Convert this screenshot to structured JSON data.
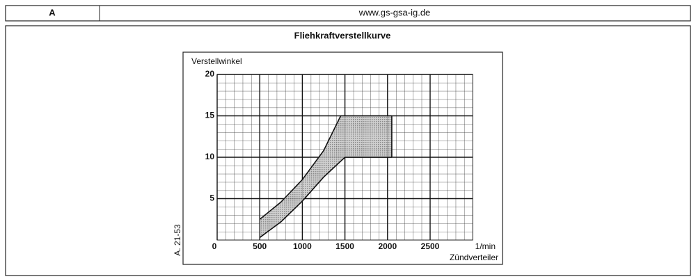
{
  "header": {
    "cell": "A",
    "url": "www.gs-gsa-ig.de"
  },
  "note": "A. 21-53",
  "chart_data": {
    "type": "area",
    "title": "Fliehkraftverstellkurve",
    "y_label": "Verstellwinkel",
    "x_label": "1/min",
    "x_label_2": "Zündverteiler",
    "xlim": [
      0,
      3000
    ],
    "ylim": [
      0,
      20
    ],
    "xticks": [
      0,
      500,
      1000,
      1500,
      2000,
      2500
    ],
    "yticks": [
      5,
      10,
      15,
      20
    ],
    "grid": true,
    "color": "#9a9a9a",
    "series": [
      {
        "x": [
          500,
          750,
          1000,
          1250,
          1450,
          2050
        ],
        "values": [
          2.5,
          4.6,
          7.3,
          10.8,
          15,
          15
        ]
      },
      {
        "x": [
          500,
          750,
          1000,
          1250,
          1500,
          2050
        ],
        "values": [
          0.3,
          2.2,
          4.7,
          7.6,
          10,
          10
        ]
      }
    ]
  }
}
